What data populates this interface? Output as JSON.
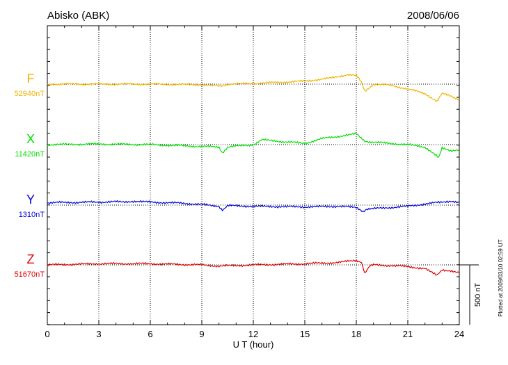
{
  "chart_data": {
    "type": "line",
    "title": "Abisko (ABK)",
    "date": "2008/06/06",
    "xlabel": "U T (hour)",
    "xlim": [
      0,
      24
    ],
    "xticks": [
      0,
      3,
      6,
      9,
      12,
      15,
      18,
      21,
      24
    ],
    "grid": "dotted vertical lines every 3 hours, dotted horizontal baselines",
    "scale_bar": {
      "label": "500 nT",
      "value": 500
    },
    "footer": "Plotted at 2009/03/10 02:59 UT",
    "series": [
      {
        "name": "F",
        "baseline_label": "52940nT",
        "baseline": 52940,
        "color": "#f0b400",
        "x": [
          0,
          3,
          6,
          9,
          10.2,
          10.5,
          12,
          15,
          16.5,
          17.5,
          18,
          18.3,
          18.5,
          19,
          20,
          21,
          21.5,
          22,
          22.7,
          23,
          23.5,
          24
        ],
        "y": [
          52940,
          52940,
          52940,
          52935,
          52920,
          52940,
          52945,
          52965,
          52990,
          53020,
          53010,
          52960,
          52880,
          52940,
          52930,
          52900,
          52880,
          52860,
          52800,
          52860,
          52840,
          52810
        ]
      },
      {
        "name": "X",
        "baseline_label": "11420nT",
        "baseline": 11420,
        "color": "#00e000",
        "x": [
          0,
          3,
          6,
          8,
          10,
          10.2,
          10.5,
          12,
          12.5,
          15,
          16,
          17,
          18,
          18.5,
          19,
          20,
          21,
          22,
          22.8,
          23,
          23.5,
          24
        ],
        "y": [
          11420,
          11425,
          11420,
          11410,
          11400,
          11350,
          11400,
          11420,
          11460,
          11430,
          11470,
          11490,
          11510,
          11450,
          11440,
          11430,
          11420,
          11400,
          11310,
          11390,
          11370,
          11380
        ]
      },
      {
        "name": "Y",
        "baseline_label": "1310nT",
        "baseline": 1310,
        "color": "#0000dd",
        "x": [
          0,
          3,
          4.8,
          6,
          8,
          9,
          10,
          10.2,
          10.5,
          12,
          15,
          17,
          18,
          18.4,
          18.6,
          19,
          20,
          21,
          22,
          23,
          23.5,
          24
        ],
        "y": [
          1330,
          1335,
          1340,
          1335,
          1325,
          1315,
          1300,
          1270,
          1305,
          1300,
          1295,
          1300,
          1290,
          1250,
          1270,
          1280,
          1290,
          1300,
          1320,
          1335,
          1345,
          1330
        ]
      },
      {
        "name": "Z",
        "baseline_label": "51670nT",
        "baseline": 51670,
        "color": "#dd0000",
        "x": [
          0,
          3,
          6,
          9,
          10,
          12,
          15,
          17,
          17.5,
          18,
          18.3,
          18.5,
          18.8,
          19,
          20,
          21,
          22,
          22.7,
          23,
          23.5,
          24
        ],
        "y": [
          51670,
          51680,
          51680,
          51670,
          51660,
          51670,
          51680,
          51690,
          51700,
          51710,
          51690,
          51600,
          51660,
          51670,
          51665,
          51655,
          51640,
          51580,
          51630,
          51620,
          51600
        ]
      }
    ]
  }
}
